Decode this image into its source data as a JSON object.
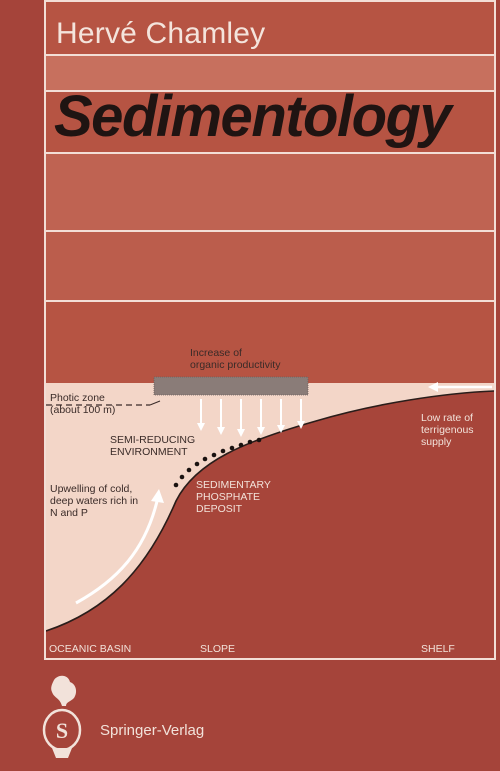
{
  "cover": {
    "author": "Hervé Chamley",
    "title": "Sedimentology",
    "publisher": "Springer-Verlag"
  },
  "diagram": {
    "labels": {
      "productivity": "Increase of\norganic productivity",
      "photic": "Photic zone\n(about 100 m)",
      "semi_reducing": "SEMI-REDUCING\nENVIRONMENT",
      "upwelling": "Upwelling of cold,\ndeep waters rich in\nN and P",
      "phosphate": "SEDIMENTARY\nPHOSPHATE\nDEPOSIT",
      "terrigenous": "Low rate of\nterrigenous\nsupply",
      "oceanic_basin": "OCEANIC BASIN",
      "slope": "SLOPE",
      "shelf": "SHELF"
    },
    "colors": {
      "water": "#f3d6c8",
      "seafloor": "#a7453a",
      "productivity_band": "#8a7c78"
    }
  }
}
